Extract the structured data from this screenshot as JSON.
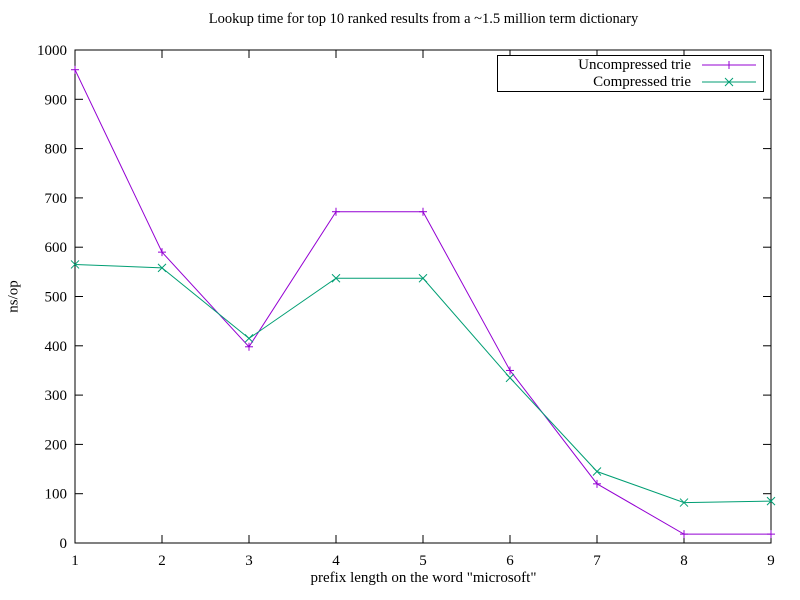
{
  "chart_data": {
    "type": "line",
    "title": "Lookup time for top 10 ranked results from a ~1.5 million term dictionary",
    "xlabel": "prefix length on the word \"microsoft\"",
    "ylabel": "ns/op",
    "x": [
      1,
      2,
      3,
      4,
      5,
      6,
      7,
      8,
      9
    ],
    "xlim": [
      1,
      9
    ],
    "ylim": [
      0,
      1000
    ],
    "xticks": [
      1,
      2,
      3,
      4,
      5,
      6,
      7,
      8,
      9
    ],
    "yticks": [
      0,
      100,
      200,
      300,
      400,
      500,
      600,
      700,
      800,
      900,
      1000
    ],
    "grid": false,
    "legend_position": "top-right",
    "axis_color": "#000000",
    "background_color": "#ffffff",
    "series": [
      {
        "name": "Uncompressed trie",
        "color": "#9400d3",
        "marker": "plus",
        "values": [
          960,
          590,
          398,
          672,
          672,
          350,
          120,
          18,
          18
        ]
      },
      {
        "name": "Compressed trie",
        "color": "#009e73",
        "marker": "cross",
        "values": [
          565,
          558,
          415,
          537,
          537,
          335,
          145,
          82,
          85
        ]
      }
    ]
  }
}
